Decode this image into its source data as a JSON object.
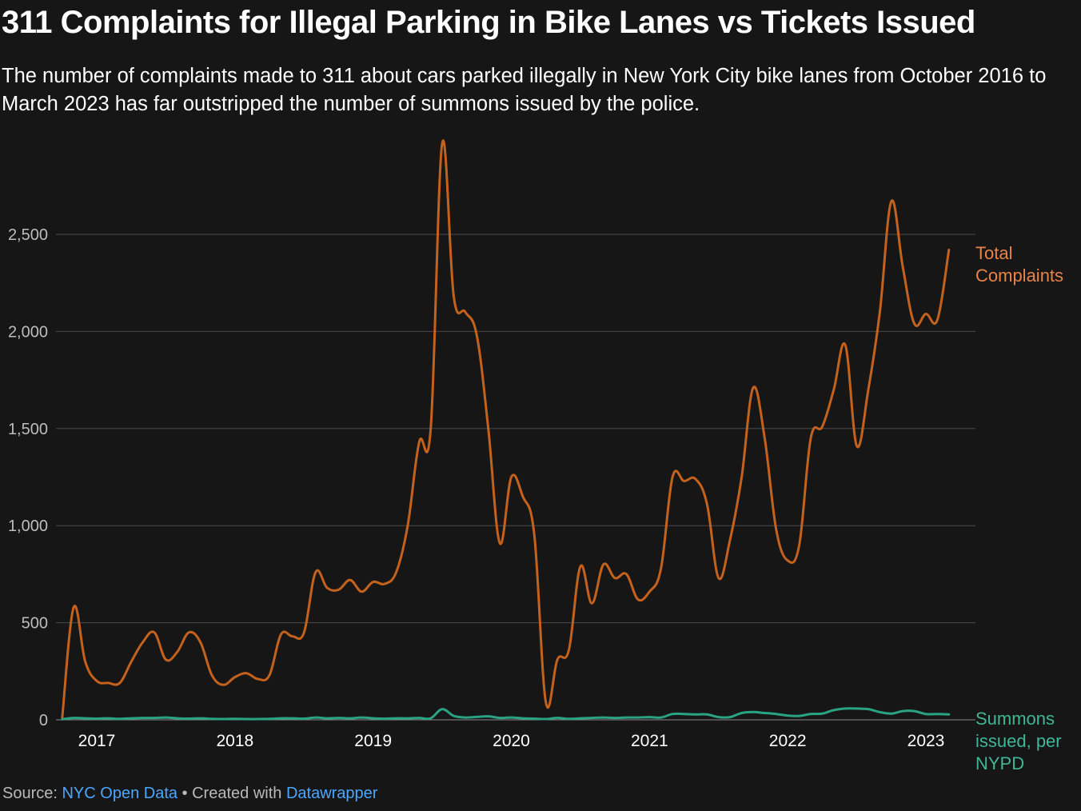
{
  "title": "311 Complaints for Illegal Parking in Bike Lanes vs Tickets Issued",
  "subtitle": "The number of complaints made to 311 about cars parked illegally in New York City bike lanes from October 2016 to March 2023 has far outstripped the number of summons issued by the police.",
  "footer": {
    "source_label": "Source: ",
    "source_link": "NYC Open Data",
    "separator": " • Created with ",
    "tool_link": "Datawrapper"
  },
  "colors": {
    "background": "#161616",
    "complaints": "#c4621d",
    "complaints_label": "#e8844a",
    "summons": "#2aa383",
    "summons_label": "#3fb893",
    "grid": "#4a4a4a",
    "axis_text": "#bdbdbd"
  },
  "chart_data": {
    "type": "line",
    "title": "311 Complaints for Illegal Parking in Bike Lanes vs Tickets Issued",
    "xlabel": "",
    "ylabel": "",
    "ylim": [
      0,
      2900
    ],
    "xlim": [
      "2016-10",
      "2023-03"
    ],
    "grid": true,
    "yticks": [
      0,
      500,
      1000,
      1500,
      2000,
      2500
    ],
    "ytick_labels": [
      "0",
      "500",
      "1,000",
      "1,500",
      "2,000",
      "2,500"
    ],
    "xticks": [
      "2017",
      "2018",
      "2019",
      "2020",
      "2021",
      "2022",
      "2023"
    ],
    "x": [
      "2016-10",
      "2016-11",
      "2016-12",
      "2017-01",
      "2017-02",
      "2017-03",
      "2017-04",
      "2017-05",
      "2017-06",
      "2017-07",
      "2017-08",
      "2017-09",
      "2017-10",
      "2017-11",
      "2017-12",
      "2018-01",
      "2018-02",
      "2018-03",
      "2018-04",
      "2018-05",
      "2018-06",
      "2018-07",
      "2018-08",
      "2018-09",
      "2018-10",
      "2018-11",
      "2018-12",
      "2019-01",
      "2019-02",
      "2019-03",
      "2019-04",
      "2019-05",
      "2019-06",
      "2019-07",
      "2019-08",
      "2019-09",
      "2019-10",
      "2019-11",
      "2019-12",
      "2020-01",
      "2020-02",
      "2020-03",
      "2020-04",
      "2020-05",
      "2020-06",
      "2020-07",
      "2020-08",
      "2020-09",
      "2020-10",
      "2020-11",
      "2020-12",
      "2021-01",
      "2021-02",
      "2021-03",
      "2021-04",
      "2021-05",
      "2021-06",
      "2021-07",
      "2021-08",
      "2021-09",
      "2021-10",
      "2021-11",
      "2021-12",
      "2022-01",
      "2022-02",
      "2022-03",
      "2022-04",
      "2022-05",
      "2022-06",
      "2022-07",
      "2022-08",
      "2022-09",
      "2022-10",
      "2022-11",
      "2022-12",
      "2023-01",
      "2023-02",
      "2023-03"
    ],
    "series": [
      {
        "name": "Total Complaints",
        "values": [
          10,
          580,
          300,
          200,
          190,
          190,
          300,
          400,
          450,
          310,
          350,
          450,
          400,
          230,
          180,
          220,
          240,
          210,
          230,
          440,
          430,
          450,
          760,
          680,
          670,
          720,
          660,
          710,
          700,
          760,
          1000,
          1430,
          1500,
          2970,
          2180,
          2100,
          1980,
          1500,
          910,
          1250,
          1150,
          950,
          90,
          310,
          360,
          790,
          600,
          800,
          730,
          750,
          620,
          660,
          780,
          1250,
          1230,
          1240,
          1110,
          730,
          930,
          1250,
          1710,
          1450,
          980,
          820,
          900,
          1450,
          1510,
          1700,
          1930,
          1410,
          1700,
          2100,
          2670,
          2330,
          2040,
          2090,
          2060,
          2420
        ]
      },
      {
        "name": "Summons issued, per NYPD",
        "values": [
          3,
          10,
          8,
          6,
          8,
          5,
          8,
          10,
          10,
          12,
          8,
          6,
          8,
          5,
          4,
          5,
          4,
          4,
          5,
          8,
          8,
          6,
          12,
          8,
          10,
          8,
          12,
          8,
          6,
          8,
          8,
          10,
          8,
          55,
          20,
          12,
          15,
          18,
          10,
          12,
          8,
          6,
          4,
          10,
          5,
          8,
          10,
          12,
          10,
          12,
          12,
          14,
          12,
          30,
          30,
          28,
          28,
          14,
          14,
          35,
          40,
          35,
          30,
          22,
          20,
          30,
          32,
          50,
          58,
          58,
          55,
          40,
          32,
          45,
          45,
          30,
          30,
          28
        ]
      }
    ]
  }
}
